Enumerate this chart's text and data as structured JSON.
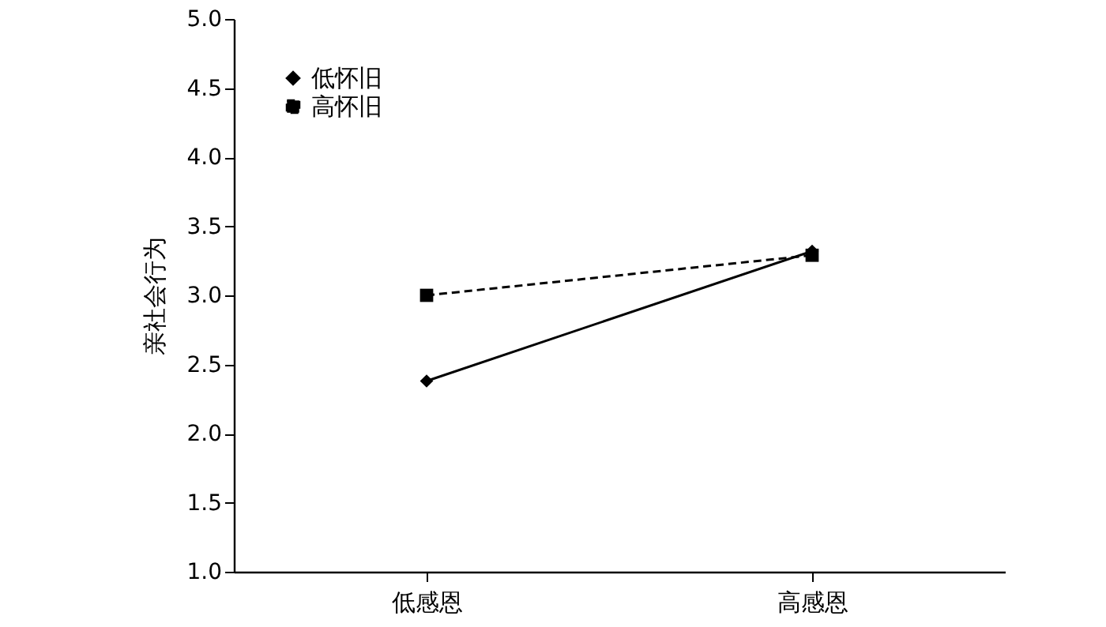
{
  "chart_data": {
    "type": "line",
    "ylabel": "亲社会行为",
    "categories": [
      "低感恩",
      "高感恩"
    ],
    "series": [
      {
        "name": "低怀旧",
        "color": "#000000",
        "values": [
          2.38,
          3.32
        ],
        "marker": "diamond",
        "line_style": "solid"
      },
      {
        "name": "高怀旧",
        "color": "#000000",
        "values": [
          3.0,
          3.29
        ],
        "marker": "square",
        "line_style": "dashed"
      }
    ],
    "ylim": [
      1.0,
      5.0
    ],
    "yticks": [
      {
        "value": 1,
        "label": "1.0"
      },
      {
        "value": 1.5,
        "label": "1.5"
      },
      {
        "value": 2,
        "label": "2.0"
      },
      {
        "value": 2.5,
        "label": "2.5"
      },
      {
        "value": 3,
        "label": "3.0"
      },
      {
        "value": 3.5,
        "label": "3.5"
      },
      {
        "value": 4,
        "label": "4.0"
      },
      {
        "value": 4.5,
        "label": "4.5"
      },
      {
        "value": 5,
        "label": "5.0"
      }
    ],
    "grid": false,
    "legend": "top left"
  }
}
